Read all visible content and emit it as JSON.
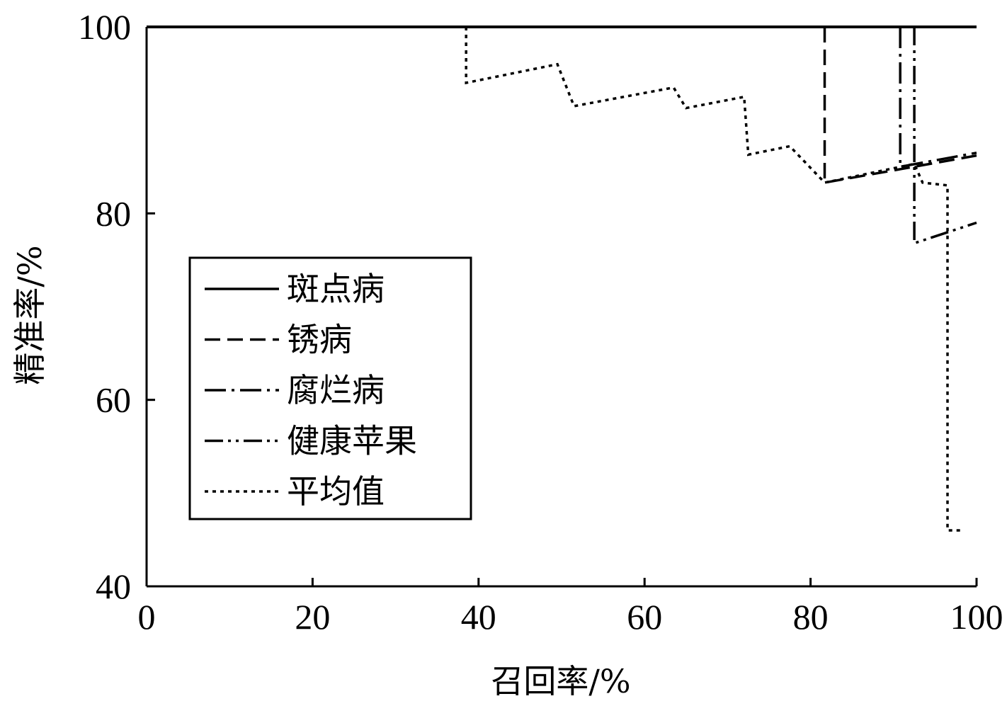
{
  "chart_data": {
    "type": "line",
    "xlabel": "召回率/%",
    "ylabel": "精准率/%",
    "xlim": [
      0,
      100
    ],
    "ylim": [
      40,
      100
    ],
    "xticks": [
      0,
      20,
      40,
      60,
      80,
      100
    ],
    "yticks": [
      40,
      60,
      80,
      100
    ],
    "grid": false,
    "legend_position": "left-middle",
    "series": [
      {
        "name": "斑点病",
        "dash": "solid",
        "points": [
          [
            0,
            100
          ],
          [
            100,
            100
          ]
        ]
      },
      {
        "name": "锈病",
        "dash": "dash",
        "points": [
          [
            81.7,
            100
          ],
          [
            81.7,
            83.3
          ],
          [
            100,
            86.2
          ]
        ]
      },
      {
        "name": "腐烂病",
        "dash": "dashdot",
        "points": [
          [
            90.8,
            100
          ],
          [
            90.8,
            85
          ],
          [
            100,
            86.5
          ]
        ]
      },
      {
        "name": "健康苹果",
        "dash": "dashdotdot",
        "points": [
          [
            92.5,
            100
          ],
          [
            92.5,
            76.8
          ],
          [
            100,
            79
          ]
        ]
      },
      {
        "name": "平均值",
        "dash": "dotted",
        "points": [
          [
            38.5,
            100
          ],
          [
            38.5,
            94
          ],
          [
            49.5,
            96
          ],
          [
            51.5,
            91.5
          ],
          [
            63.5,
            93.5
          ],
          [
            65,
            91.3
          ],
          [
            72,
            92.5
          ],
          [
            72.5,
            86.3
          ],
          [
            77.5,
            87.2
          ],
          [
            81.7,
            83.3
          ],
          [
            92.5,
            85.3
          ],
          [
            93.5,
            83.3
          ],
          [
            96.5,
            83
          ],
          [
            96.5,
            46
          ],
          [
            98.5,
            46
          ]
        ]
      }
    ]
  }
}
